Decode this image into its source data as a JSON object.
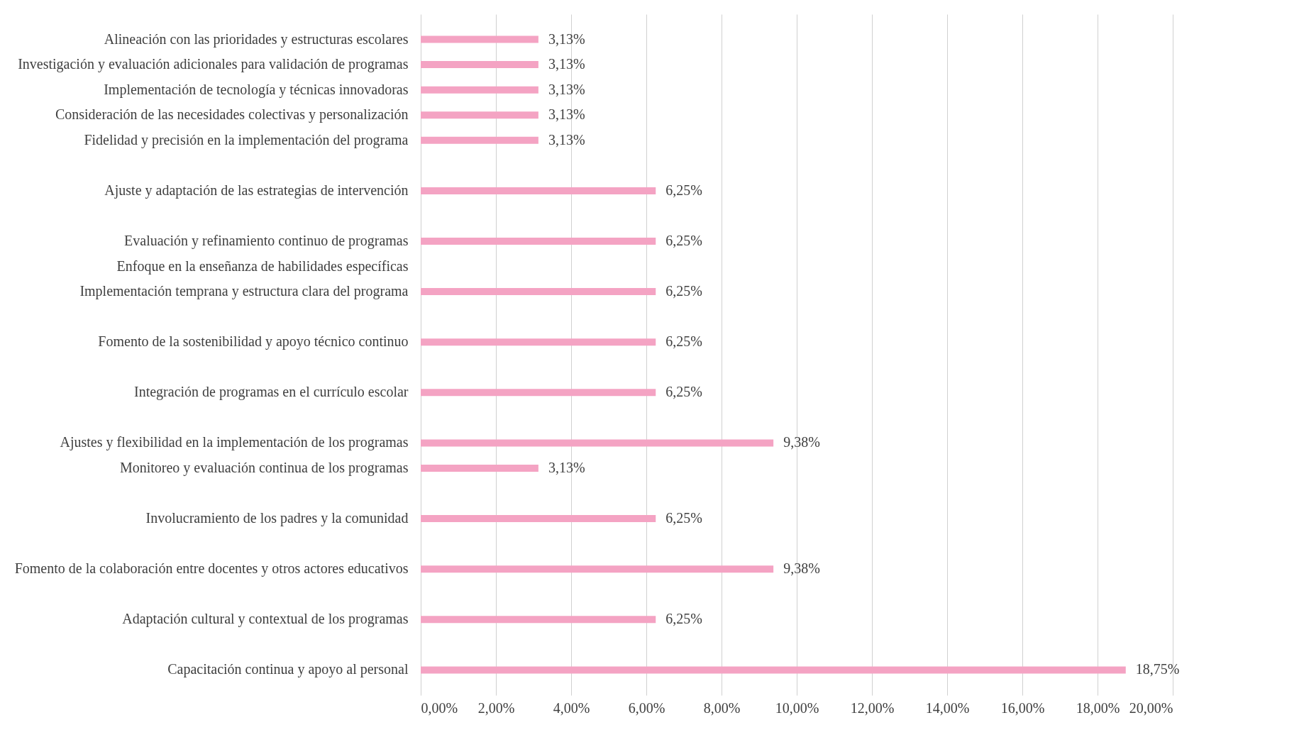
{
  "chart_data": {
    "type": "bar",
    "orientation": "horizontal",
    "categories": [
      "Alineación con las prioridades y estructuras escolares",
      "Investigación y evaluación adicionales para validación de programas",
      "Implementación de tecnología y técnicas innovadoras",
      "Consideración de las necesidades colectivas y personalización",
      "Fidelidad y precisión en la implementación del programa",
      null,
      "Ajuste y adaptación de las estrategias de intervención",
      null,
      "Evaluación y refinamiento continuo de programas",
      "Enfoque en la enseñanza de habilidades específicas",
      "Implementación temprana y estructura clara del programa",
      null,
      "Fomento de la sostenibilidad y apoyo técnico continuo",
      null,
      "Integración de programas en el currículo escolar",
      null,
      "Ajustes y flexibilidad en la implementación de los programas",
      "Monitoreo y evaluación continua de los programas",
      null,
      "Involucramiento de los padres y la comunidad",
      null,
      "Fomento de la colaboración entre docentes y otros actores educativos",
      null,
      "Adaptación cultural y contextual de los programas",
      null,
      "Capacitación continua y apoyo al personal"
    ],
    "values": [
      3.13,
      3.13,
      3.13,
      3.13,
      3.13,
      null,
      6.25,
      null,
      6.25,
      null,
      6.25,
      null,
      6.25,
      null,
      6.25,
      null,
      9.38,
      3.13,
      null,
      6.25,
      null,
      9.38,
      null,
      6.25,
      null,
      18.75
    ],
    "value_labels": [
      "3,13%",
      "3,13%",
      "3,13%",
      "3,13%",
      "3,13%",
      null,
      "6,25%",
      null,
      "6,25%",
      null,
      "6,25%",
      null,
      "6,25%",
      null,
      "6,25%",
      null,
      "9,38%",
      "3,13%",
      null,
      "6,25%",
      null,
      "9,38%",
      null,
      "6,25%",
      null,
      "18,75%"
    ],
    "color": "#f4a3c3",
    "xlim": [
      0,
      20
    ],
    "xticks": [
      {
        "value": 0,
        "label": "0,00%"
      },
      {
        "value": 2,
        "label": "2,00%"
      },
      {
        "value": 4,
        "label": "4,00%"
      },
      {
        "value": 6,
        "label": "6,00%"
      },
      {
        "value": 8,
        "label": "8,00%"
      },
      {
        "value": 10,
        "label": "10,00%"
      },
      {
        "value": 12,
        "label": "12,00%"
      },
      {
        "value": 14,
        "label": "14,00%"
      },
      {
        "value": 16,
        "label": "16,00%"
      },
      {
        "value": 18,
        "label": "18,00%"
      },
      {
        "value": 20,
        "label": "20,00%"
      }
    ],
    "grid": "x"
  }
}
